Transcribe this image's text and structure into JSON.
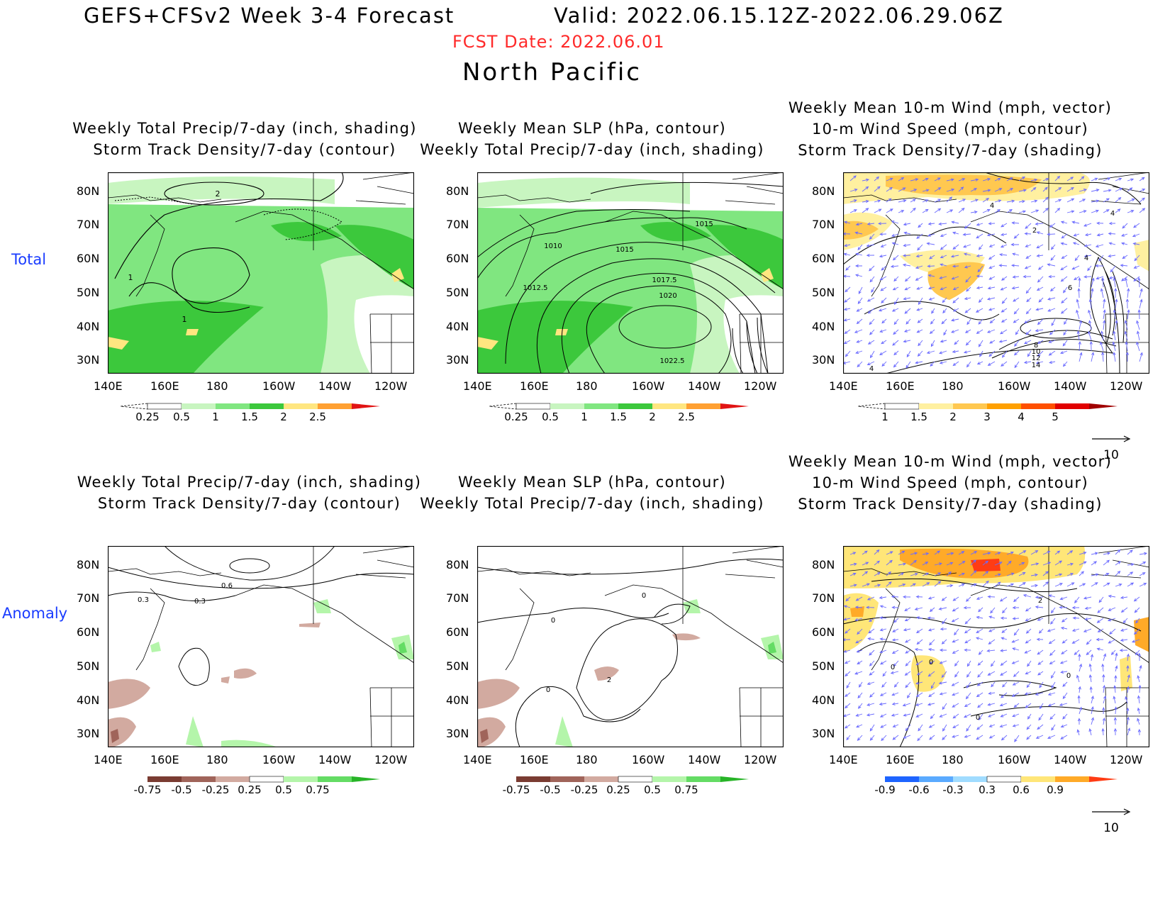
{
  "header": {
    "title": "GEFS+CFSv2 Week 3-4 Forecast",
    "valid": "Valid: 2022.06.15.12Z-2022.06.29.06Z",
    "fcst_date": "FCST Date: 2022.06.01",
    "region": "North Pacific"
  },
  "row_labels": {
    "total": "Total",
    "anomaly": "Anomaly"
  },
  "panels": {
    "p1": {
      "line1": "Weekly Total Precip/7-day (inch, shading)",
      "line2": "Storm Track Density/7-day (contour)"
    },
    "p2": {
      "line1": "Weekly Mean SLP (hPa, contour)",
      "line2": "Weekly Total Precip/7-day (inch, shading)"
    },
    "p3": {
      "line1": "Weekly Mean 10-m Wind (mph, vector)",
      "line2": "10-m Wind Speed (mph, contour)",
      "line3": "Storm Track Density/7-day (shading)"
    },
    "p4": {
      "line1": "Weekly Total Precip/7-day (inch, shading)",
      "line2": "Storm Track Density/7-day (contour)"
    },
    "p5": {
      "line1": "Weekly Mean SLP (hPa, contour)",
      "line2": "Weekly Total Precip/7-day (inch, shading)"
    },
    "p6": {
      "line1": "Weekly Mean 10-m Wind (mph, vector)",
      "line2": "10-m Wind Speed (mph, contour)",
      "line3": "Storm Track Density/7-day (shading)"
    }
  },
  "axes": {
    "lat_labels": [
      "80N",
      "70N",
      "60N",
      "50N",
      "40N",
      "30N"
    ],
    "lon_labels": [
      "140E",
      "160E",
      "180",
      "160W",
      "140W",
      "120W"
    ]
  },
  "contour_labels": {
    "p1": [
      "2",
      "1",
      "1"
    ],
    "p2": [
      "1015",
      "1010",
      "1015",
      "1012.5",
      "1017.5",
      "1020",
      "1022.5"
    ],
    "p3": [
      "4",
      "4",
      "2",
      "4",
      "6",
      "8",
      "10",
      "12",
      "14",
      "4"
    ],
    "p4": [
      "0.6",
      "0.3",
      "0.3"
    ],
    "p5": [
      "0",
      "0",
      "0",
      "2"
    ],
    "p6": [
      "2",
      "0",
      "0",
      "0",
      "0"
    ]
  },
  "colorbars": {
    "precip_total": [
      "0.25",
      "0.5",
      "1",
      "1.5",
      "2",
      "2.5"
    ],
    "storm_total": [
      "1",
      "1.5",
      "2",
      "3",
      "4",
      "5"
    ],
    "precip_anom": [
      "-0.75",
      "-0.5",
      "-0.25",
      "0.25",
      "0.5",
      "0.75"
    ],
    "storm_anom": [
      "-0.9",
      "-0.6",
      "-0.3",
      "0.3",
      "0.6",
      "0.9"
    ]
  },
  "vector_reference": {
    "top": "10",
    "bottom": "10"
  },
  "colors": {
    "precip_total": [
      "#c8f5c0",
      "#80e680",
      "#3cc83c",
      "#ffe680",
      "#ffa032",
      "#e11414"
    ],
    "storm_total": [
      "#fff0a0",
      "#ffc850",
      "#ffa000",
      "#ff5000",
      "#e10000",
      "#a00000"
    ],
    "precip_anom_neg": [
      "#7a3c32",
      "#a0645a",
      "#d2aaa0"
    ],
    "precip_anom_pos": [
      "#b4f5aa",
      "#64dc64",
      "#28b428"
    ],
    "storm_anom_neg": [
      "#1e64ff",
      "#5aaaff",
      "#a0dcff"
    ],
    "storm_anom_pos": [
      "#ffe678",
      "#ffaa28",
      "#ff3c14"
    ]
  }
}
